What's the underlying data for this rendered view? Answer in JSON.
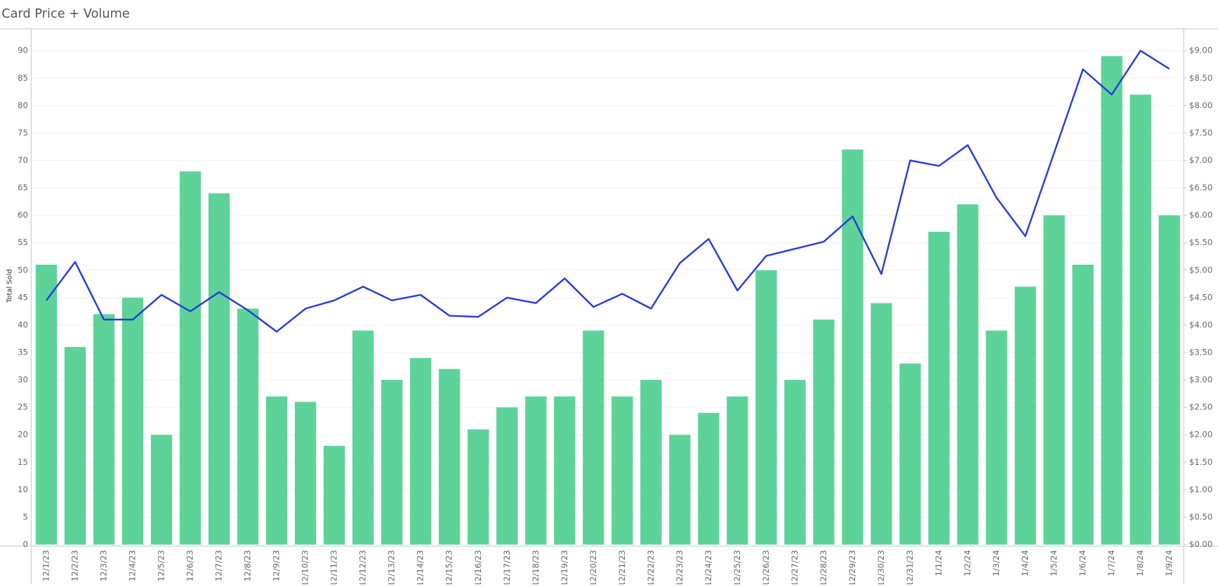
{
  "chart_data": {
    "type": "bar_line",
    "title": "Card Price + Volume",
    "y_label": "Total Sold",
    "categories": [
      "12/1/23",
      "12/2/23",
      "12/3/23",
      "12/4/23",
      "12/5/23",
      "12/6/23",
      "12/7/23",
      "12/8/23",
      "12/9/23",
      "12/10/23",
      "12/11/23",
      "12/12/23",
      "12/13/23",
      "12/14/23",
      "12/15/23",
      "12/16/23",
      "12/17/23",
      "12/18/23",
      "12/19/23",
      "12/20/23",
      "12/21/23",
      "12/22/23",
      "12/23/23",
      "12/24/23",
      "12/25/23",
      "12/26/23",
      "12/27/23",
      "12/28/23",
      "12/29/23",
      "12/30/23",
      "12/31/23",
      "1/1/24",
      "1/2/24",
      "1/3/24",
      "1/4/24",
      "1/5/24",
      "1/6/24",
      "1/7/24",
      "1/8/24",
      "1/9/24"
    ],
    "series": [
      {
        "type": "bar",
        "color": "#5dd39a",
        "values": [
          51,
          36,
          42,
          45,
          20,
          68,
          64,
          43,
          27,
          26,
          18,
          39,
          30,
          34,
          32,
          21,
          25,
          27,
          27,
          39,
          27,
          30,
          20,
          24,
          27,
          50,
          30,
          41,
          72,
          44,
          33,
          57,
          62,
          39,
          47,
          60,
          51,
          89,
          82,
          60
        ]
      },
      {
        "type": "line",
        "axis": "y2",
        "color": "#2b3bd6",
        "values": [
          4.45,
          5.15,
          4.1,
          4.1,
          4.55,
          4.25,
          4.6,
          4.27,
          3.88,
          4.3,
          4.45,
          4.7,
          4.45,
          4.55,
          4.17,
          4.15,
          4.5,
          4.4,
          4.85,
          4.33,
          4.57,
          4.3,
          5.13,
          5.57,
          4.63,
          5.26,
          5.39,
          5.52,
          5.98,
          4.93,
          7.0,
          6.9,
          7.28,
          6.32,
          5.62,
          7.14,
          8.66,
          8.2,
          9.0,
          8.67
        ]
      }
    ],
    "ylim": [
      0,
      94
    ],
    "yticks": [
      0,
      5,
      10,
      15,
      20,
      25,
      30,
      35,
      40,
      45,
      50,
      55,
      60,
      65,
      70,
      75,
      80,
      85,
      90
    ],
    "y2lim": [
      0,
      9.4
    ],
    "y2ticks": [
      {
        "value": 0,
        "label": "$0.00"
      },
      {
        "value": 0.5,
        "label": "$0.50"
      },
      {
        "value": 1,
        "label": "$1.00"
      },
      {
        "value": 1.5,
        "label": "$1.50"
      },
      {
        "value": 2,
        "label": "$2.00"
      },
      {
        "value": 2.5,
        "label": "$2.50"
      },
      {
        "value": 3,
        "label": "$3.00"
      },
      {
        "value": 3.5,
        "label": "$3.50"
      },
      {
        "value": 4,
        "label": "$4.00"
      },
      {
        "value": 4.5,
        "label": "$4.50"
      },
      {
        "value": 5,
        "label": "$5.00"
      },
      {
        "value": 5.5,
        "label": "$5.50"
      },
      {
        "value": 6,
        "label": "$6.00"
      },
      {
        "value": 6.5,
        "label": "$6.50"
      },
      {
        "value": 7,
        "label": "$7.00"
      },
      {
        "value": 7.5,
        "label": "$7.50"
      },
      {
        "value": 8,
        "label": "$8.00"
      },
      {
        "value": 8.5,
        "label": "$8.50"
      },
      {
        "value": 9,
        "label": "$9.00"
      }
    ],
    "grid": true
  }
}
